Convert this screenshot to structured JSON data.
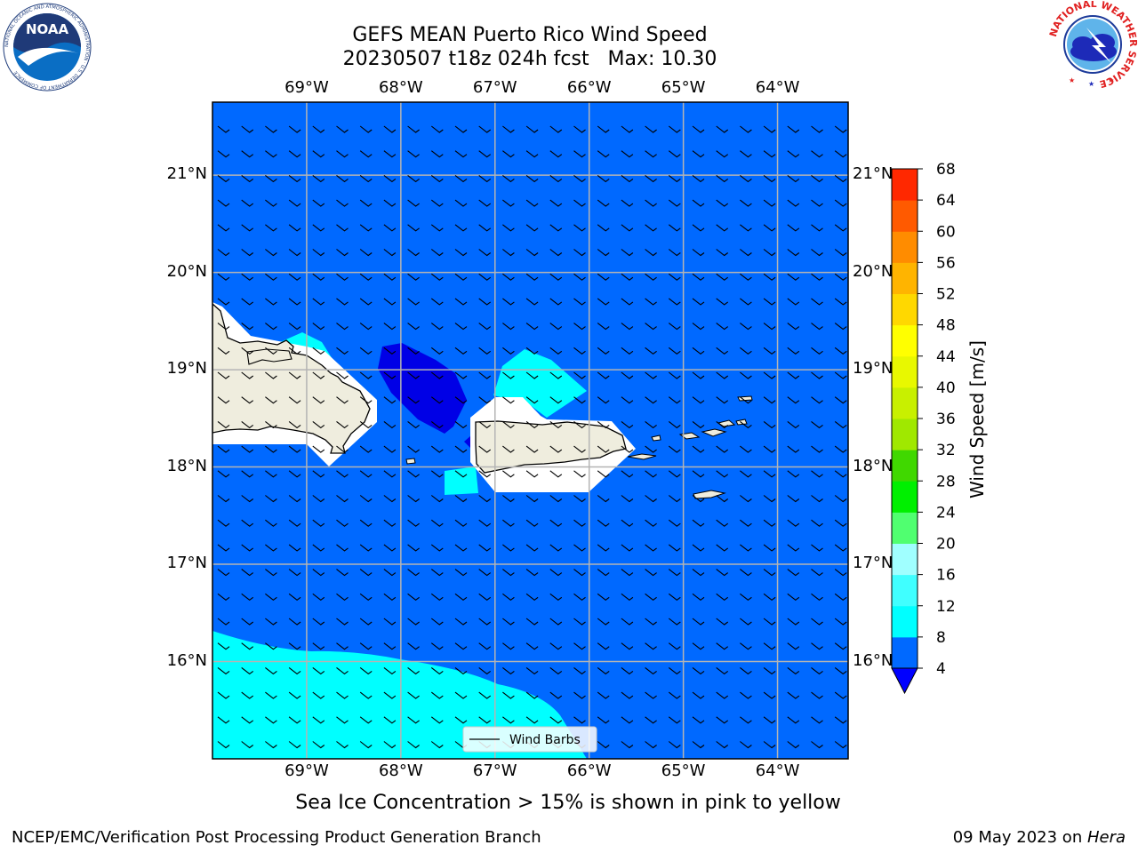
{
  "header": {
    "title_line1": "GEFS MEAN Puerto Rico Wind Speed",
    "title_line2": "20230507 t18z 024h fcst   Max: 10.30"
  },
  "logos": {
    "noaa_text": "NOAA",
    "noaa_ring_text": "NATIONAL OCEANIC AND ATMOSPHERIC ADMINISTRATION · U.S. DEPARTMENT OF COMMERCE",
    "nws_ring_text": "NATIONAL WEATHER SERVICE"
  },
  "map": {
    "lon_labels": [
      "69°W",
      "68°W",
      "67°W",
      "66°W",
      "65°W",
      "64°W"
    ],
    "lat_labels": [
      "21°N",
      "20°N",
      "19°N",
      "18°N",
      "17°N",
      "16°N"
    ],
    "lon_range": [
      -70.0,
      -63.25
    ],
    "lat_range": [
      15.0,
      21.75
    ],
    "gridlines": true,
    "legend": {
      "label": "Wind Barbs",
      "placement": "bottom-center"
    }
  },
  "colorbar": {
    "label": "Wind Speed [m/s]",
    "ticks": [
      "68",
      "64",
      "60",
      "56",
      "52",
      "48",
      "44",
      "40",
      "36",
      "32",
      "28",
      "24",
      "20",
      "16",
      "12",
      "8",
      "4"
    ],
    "levels": [
      4,
      8,
      12,
      16,
      20,
      24,
      28,
      32,
      36,
      40,
      44,
      48,
      52,
      56,
      60,
      64,
      68
    ],
    "colors": [
      "#0069ff",
      "#00ffff",
      "#40ffff",
      "#a0ffff",
      "#50ff70",
      "#00f000",
      "#40d800",
      "#a0e800",
      "#c8f000",
      "#e8f800",
      "#ffff00",
      "#ffd800",
      "#ffb400",
      "#ff8c00",
      "#ff5a00",
      "#ff2800"
    ],
    "under_color": "#0000ff"
  },
  "annotation": "Sea Ice Concentration > 15% is shown in pink to yellow",
  "footer": {
    "left": "NCEP/EMC/Verification Post Processing Product Generation Branch",
    "date": "09 May 2023 on ",
    "host": "Hera"
  },
  "colors": {
    "ocean": "#0069ff",
    "calm": "#0000e6",
    "cyan": "#00ffff",
    "land": "#efedde",
    "land_mask": "#ffffff",
    "grid": "#b4b4b4"
  }
}
